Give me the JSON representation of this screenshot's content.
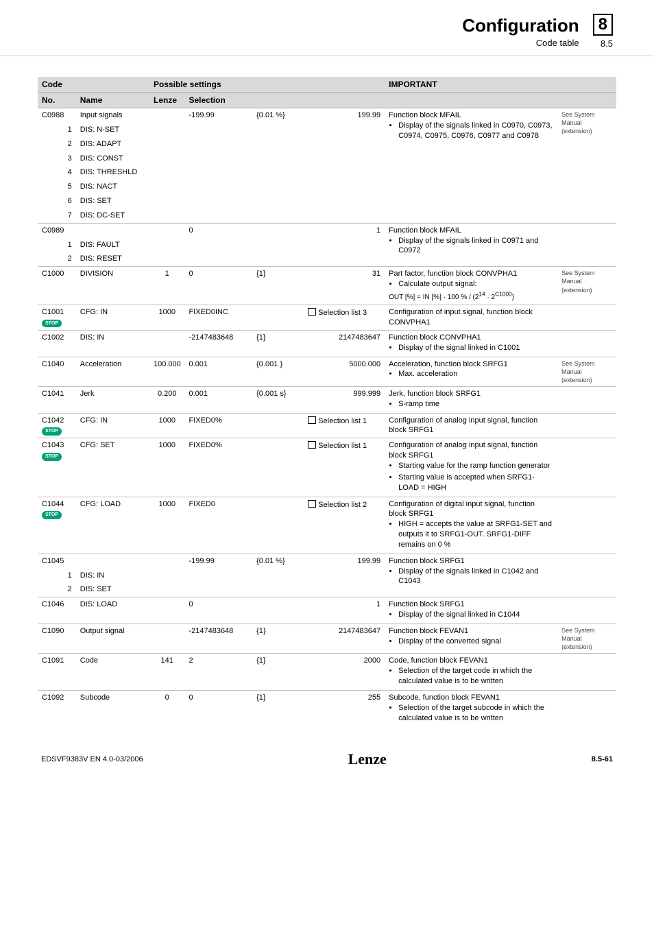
{
  "header": {
    "title": "Configuration",
    "subtitle": "Code table",
    "chapter_big": "8",
    "chapter_small": "8.5"
  },
  "tableHeaders": {
    "code": "Code",
    "no": "No.",
    "name": "Name",
    "possible": "Possible settings",
    "lenze": "Lenze",
    "selection": "Selection",
    "important": "IMPORTANT"
  },
  "refText": {
    "sysManExt": "See System Manual (extension)"
  },
  "groups": [
    {
      "code": "C0988",
      "name": "Input signals",
      "lenze": "",
      "sel_min": "-199.99",
      "sel_step": "{0.01 %}",
      "sel_max": "199.99",
      "important_lead": "Function block MFAIL",
      "important_bullets": [
        "Display of the signals linked in C0970, C0973, C0974, C0975, C0976, C0977 and C0978"
      ],
      "ref": "sysManExt",
      "stop": false,
      "subs": [
        [
          "1",
          "DIS: N-SET"
        ],
        [
          "2",
          "DIS: ADAPT"
        ],
        [
          "3",
          "DIS: CONST"
        ],
        [
          "4",
          "DIS: THRESHLD"
        ],
        [
          "5",
          "DIS: NACT"
        ],
        [
          "6",
          "DIS: SET"
        ],
        [
          "7",
          "DIS: DC-SET"
        ]
      ]
    },
    {
      "code": "C0989",
      "name": "",
      "lenze": "",
      "sel_min": "0",
      "sel_step": "",
      "sel_max": "1",
      "important_lead": "Function block MFAIL",
      "important_bullets": [
        "Display of the signals linked in C0971 and C0972"
      ],
      "ref": "",
      "stop": false,
      "subs": [
        [
          "1",
          "DIS: FAULT"
        ],
        [
          "2",
          "DIS: RESET"
        ]
      ]
    },
    {
      "code": "C1000",
      "name": "DIVISION",
      "lenze": "1",
      "sel_min": "0",
      "sel_step": "{1}",
      "sel_max": "31",
      "important_lead": "Part factor, function block CONVPHA1",
      "important_bullets": [
        "Calculate output signal:"
      ],
      "important_extra_html": "<span class='formula'>OUT [%] = IN [%] · 100 % / (2<sup>14</sup> · 2<sup>C1000</sup>)</span>",
      "ref": "sysManExt",
      "stop": false,
      "subs": []
    },
    {
      "code": "C1001",
      "name": "CFG: IN",
      "lenze": "1000",
      "sel_min": "FIXED0INC",
      "sel_step": "",
      "sel_book": "Selection list 3",
      "sel_max": "",
      "important_lead": "Configuration of input signal, function block CONVPHA1",
      "important_bullets": [],
      "ref": "",
      "stop": true,
      "subs": []
    },
    {
      "code": "C1002",
      "name": "DIS: IN",
      "lenze": "",
      "sel_min": "-2147483648",
      "sel_step": "{1}",
      "sel_max": "2147483647",
      "important_lead": "Function block CONVPHA1",
      "important_bullets": [
        "Display of the signal linked in C1001"
      ],
      "ref": "",
      "stop": false,
      "subs": []
    },
    {
      "code": "C1040",
      "name": "Acceleration",
      "lenze": "100.000",
      "sel_min": "0.001",
      "sel_step": "{0.001 }",
      "sel_max": "5000.000",
      "important_lead": "Acceleration, function block SRFG1",
      "important_bullets": [
        "Max. acceleration"
      ],
      "ref": "sysManExt",
      "stop": false,
      "subs": []
    },
    {
      "code": "C1041",
      "name": "Jerk",
      "lenze": "0.200",
      "sel_min": "0.001",
      "sel_step": "{0.001 s}",
      "sel_max": "999.999",
      "important_lead": "Jerk, function block SRFG1",
      "important_bullets": [
        "S-ramp time"
      ],
      "ref": "",
      "stop": false,
      "subs": []
    },
    {
      "code": "C1042",
      "name": "CFG: IN",
      "lenze": "1000",
      "sel_min": "FIXED0%",
      "sel_step": "",
      "sel_book": "Selection list 1",
      "sel_max": "",
      "important_lead": "Configuration of analog input signal, function block SRFG1",
      "important_bullets": [],
      "ref": "",
      "stop": true,
      "subs": []
    },
    {
      "code": "C1043",
      "name": "CFG: SET",
      "lenze": "1000",
      "sel_min": "FIXED0%",
      "sel_step": "",
      "sel_book": "Selection list 1",
      "sel_max": "",
      "important_lead": "Configuration of analog input signal, function block SRFG1",
      "important_bullets": [
        "Starting value for the ramp function generator",
        "Starting value is accepted when SRFG1-LOAD = HIGH"
      ],
      "ref": "",
      "stop": true,
      "subs": []
    },
    {
      "code": "C1044",
      "name": "CFG: LOAD",
      "lenze": "1000",
      "sel_min": "FIXED0",
      "sel_step": "",
      "sel_book": "Selection list 2",
      "sel_max": "",
      "important_lead": "Configuration of digital input signal, function block SRFG1",
      "important_bullets": [
        "HIGH = accepts the value at SRFG1-SET and outputs it to SRFG1-OUT. SRFG1-DIFF remains on 0 %"
      ],
      "ref": "",
      "stop": true,
      "subs": []
    },
    {
      "code": "C1045",
      "name": "",
      "lenze": "",
      "sel_min": "-199.99",
      "sel_step": "{0.01 %}",
      "sel_max": "199.99",
      "important_lead": "Function block SRFG1",
      "important_bullets": [
        "Display of the signals linked in C1042 and C1043"
      ],
      "ref": "",
      "stop": false,
      "subs": [
        [
          "1",
          "DIS: IN"
        ],
        [
          "2",
          "DIS: SET"
        ]
      ]
    },
    {
      "code": "C1046",
      "name": "DIS: LOAD",
      "lenze": "",
      "sel_min": "0",
      "sel_step": "",
      "sel_max": "1",
      "important_lead": "Function block SRFG1",
      "important_bullets": [
        "Display of the signal linked in C1044"
      ],
      "ref": "",
      "stop": false,
      "subs": []
    },
    {
      "code": "C1090",
      "name": "Output signal",
      "lenze": "",
      "sel_min": "-2147483648",
      "sel_step": "{1}",
      "sel_max": "2147483647",
      "important_lead": "Function block FEVAN1",
      "important_bullets": [
        "Display of the converted signal"
      ],
      "ref": "sysManExt",
      "stop": false,
      "subs": []
    },
    {
      "code": "C1091",
      "name": "Code",
      "lenze": "141",
      "sel_min": "2",
      "sel_step": "{1}",
      "sel_max": "2000",
      "important_lead": "Code, function block FEVAN1",
      "important_bullets": [
        "Selection of the target code in which the calculated value is to be written"
      ],
      "ref": "",
      "stop": false,
      "subs": []
    },
    {
      "code": "C1092",
      "name": "Subcode",
      "lenze": "0",
      "sel_min": "0",
      "sel_step": "{1}",
      "sel_max": "255",
      "important_lead": "Subcode, function block FEVAN1",
      "important_bullets": [
        "Selection of the target subcode in which the calculated value is to be written"
      ],
      "ref": "",
      "stop": false,
      "subs": []
    }
  ],
  "footer": {
    "left": "EDSVF9383V EN  4.0-03/2006",
    "logo": "Lenze",
    "page": "8.5-61"
  }
}
